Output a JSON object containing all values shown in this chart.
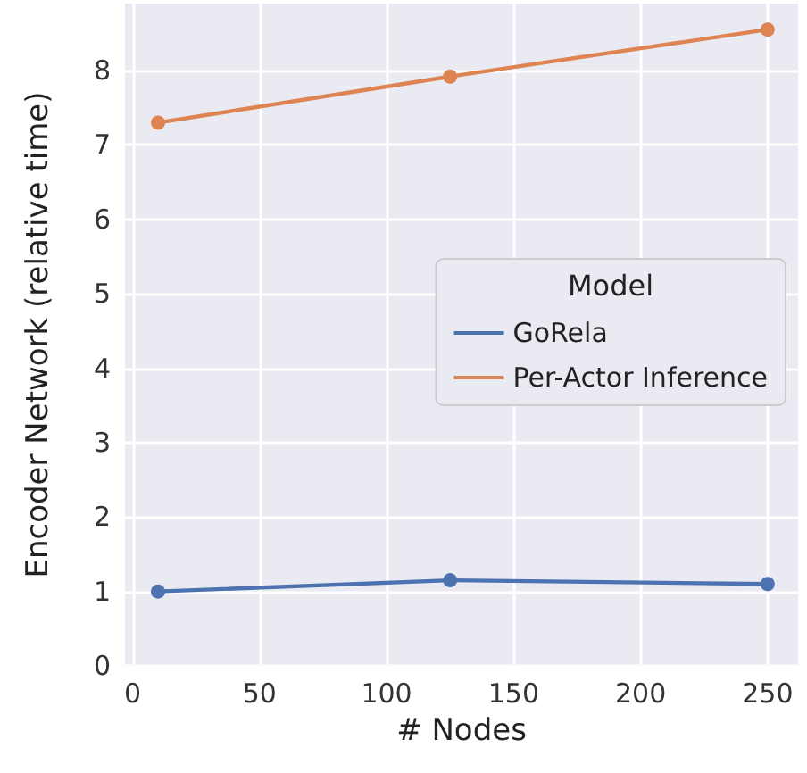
{
  "chart_data": {
    "type": "line",
    "xlabel": "# Nodes",
    "ylabel": "Encoder Network (relative time)",
    "legend_title": "Model",
    "x": [
      10,
      125,
      250
    ],
    "series": [
      {
        "name": "GoRela",
        "color": "#4c72b0",
        "values": [
          1.0,
          1.15,
          1.1
        ]
      },
      {
        "name": "Per-Actor Inference",
        "color": "#dd8452",
        "values": [
          7.3,
          7.92,
          8.55
        ]
      }
    ],
    "xlim": [
      -3,
      262
    ],
    "xticks": [
      0,
      50,
      100,
      150,
      200,
      250
    ],
    "ylim": [
      0,
      8.9
    ],
    "yticks": [
      0,
      1,
      2,
      3,
      4,
      5,
      6,
      7,
      8
    ],
    "grid": true,
    "legend": "right",
    "marker": "circle",
    "line_style": "solid"
  }
}
